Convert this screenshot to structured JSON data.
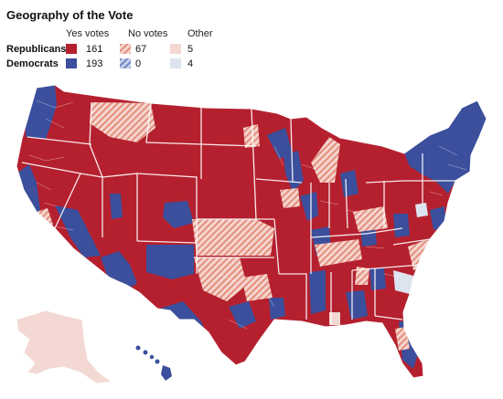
{
  "title": "Geography of the Vote",
  "legend": {
    "columns": [
      "Yes votes",
      "No votes",
      "Other"
    ],
    "rows": [
      {
        "party": "Republicans",
        "yes": "161",
        "no": "67",
        "other": "5"
      },
      {
        "party": "Democrats",
        "yes": "193",
        "no": "0",
        "other": "4"
      }
    ]
  },
  "colors": {
    "rep_yes": "#b5202e",
    "dem_yes": "#3b4f9c",
    "rep_no_base": "#f4d6cf",
    "rep_no_stripe": "#e58d7e",
    "dem_no_base": "#c9d1ea",
    "dem_no_stripe": "#6f86c4",
    "rep_other": "#f3d8d3",
    "dem_other": "#dde4ef"
  }
}
